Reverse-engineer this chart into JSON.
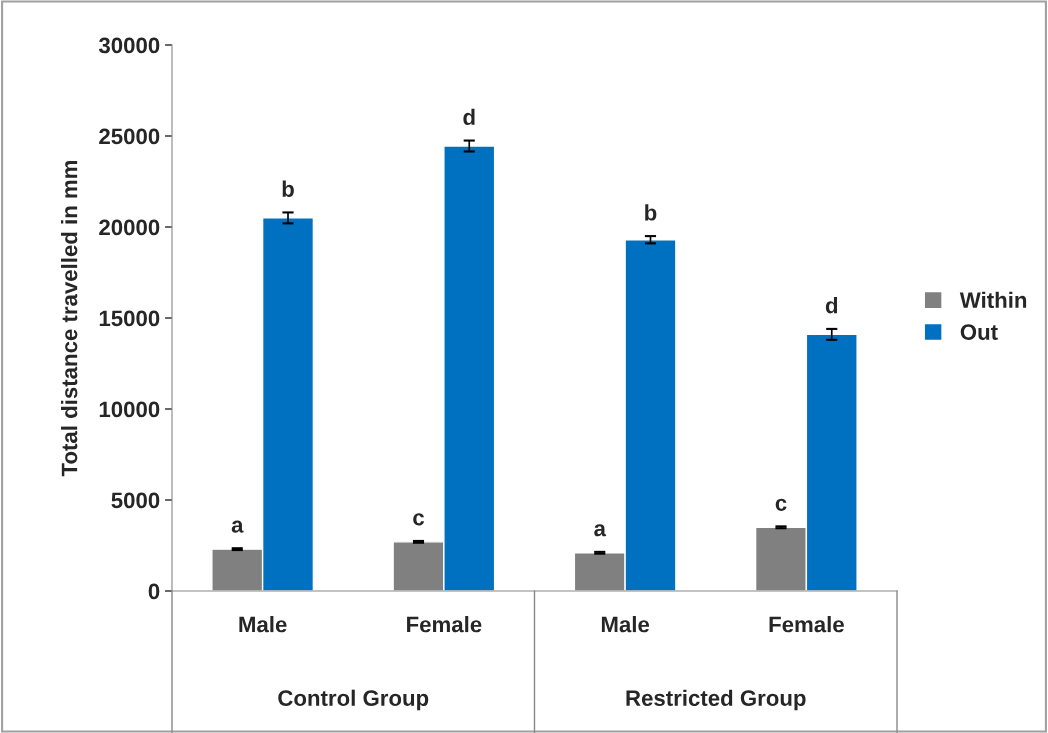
{
  "chart_data": {
    "type": "bar",
    "ylabel": "Total distance travelled in mm",
    "categories": [
      "Male",
      "Female",
      "Male",
      "Female"
    ],
    "series": [
      {
        "name": "Within",
        "color": "#808080",
        "values": [
          2300,
          2700,
          2100,
          3500
        ],
        "errors": [
          50,
          50,
          50,
          50
        ],
        "value_labels": [
          "a",
          "c",
          "a",
          "c"
        ]
      },
      {
        "name": "Out",
        "color": "#0070c0",
        "values": [
          20500,
          24450,
          19300,
          14100
        ],
        "errors": [
          300,
          300,
          200,
          300
        ],
        "value_labels": [
          "b",
          "d",
          "b",
          "d"
        ]
      }
    ],
    "annotations": [
      "Control Group",
      "Restricted Group"
    ],
    "ylim": [
      0,
      30000
    ],
    "yticks": [
      0,
      5000,
      10000,
      15000,
      20000,
      25000,
      30000
    ],
    "grid": false,
    "legend": "right"
  }
}
